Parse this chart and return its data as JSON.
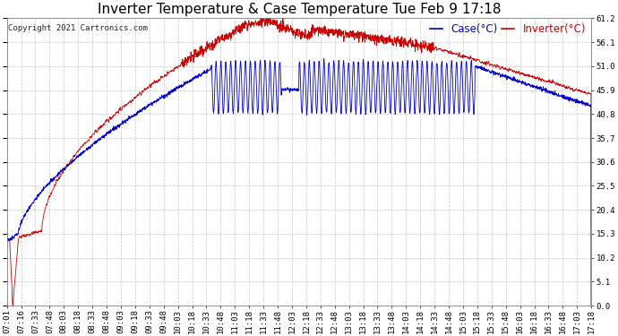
{
  "title": "Inverter Temperature & Case Temperature Tue Feb 9 17:18",
  "copyright": "Copyright 2021 Cartronics.com",
  "legend_case": "Case(°C)",
  "legend_inverter": "Inverter(°C)",
  "ylabel_right_ticks": [
    0.0,
    5.1,
    10.2,
    15.3,
    20.4,
    25.5,
    30.6,
    35.7,
    40.8,
    45.9,
    51.0,
    56.1,
    61.2
  ],
  "ymin": 0.0,
  "ymax": 61.2,
  "x_tick_labels": [
    "07:01",
    "07:16",
    "07:33",
    "07:48",
    "08:03",
    "08:18",
    "08:33",
    "08:48",
    "09:03",
    "09:18",
    "09:33",
    "09:48",
    "10:03",
    "10:18",
    "10:33",
    "10:48",
    "11:03",
    "11:18",
    "11:33",
    "11:48",
    "12:03",
    "12:18",
    "12:33",
    "12:48",
    "13:03",
    "13:18",
    "13:33",
    "13:48",
    "14:03",
    "14:18",
    "14:33",
    "14:48",
    "15:03",
    "15:18",
    "15:33",
    "15:48",
    "16:03",
    "16:18",
    "16:33",
    "16:48",
    "17:03",
    "17:18"
  ],
  "case_color": "#0000cc",
  "inverter_color": "#cc0000",
  "bg_color": "#ffffff",
  "grid_color": "#aaaaaa",
  "title_color": "#000000",
  "title_fontsize": 11,
  "tick_fontsize": 6.5,
  "legend_fontsize": 8.5,
  "copyright_fontsize": 6.5
}
